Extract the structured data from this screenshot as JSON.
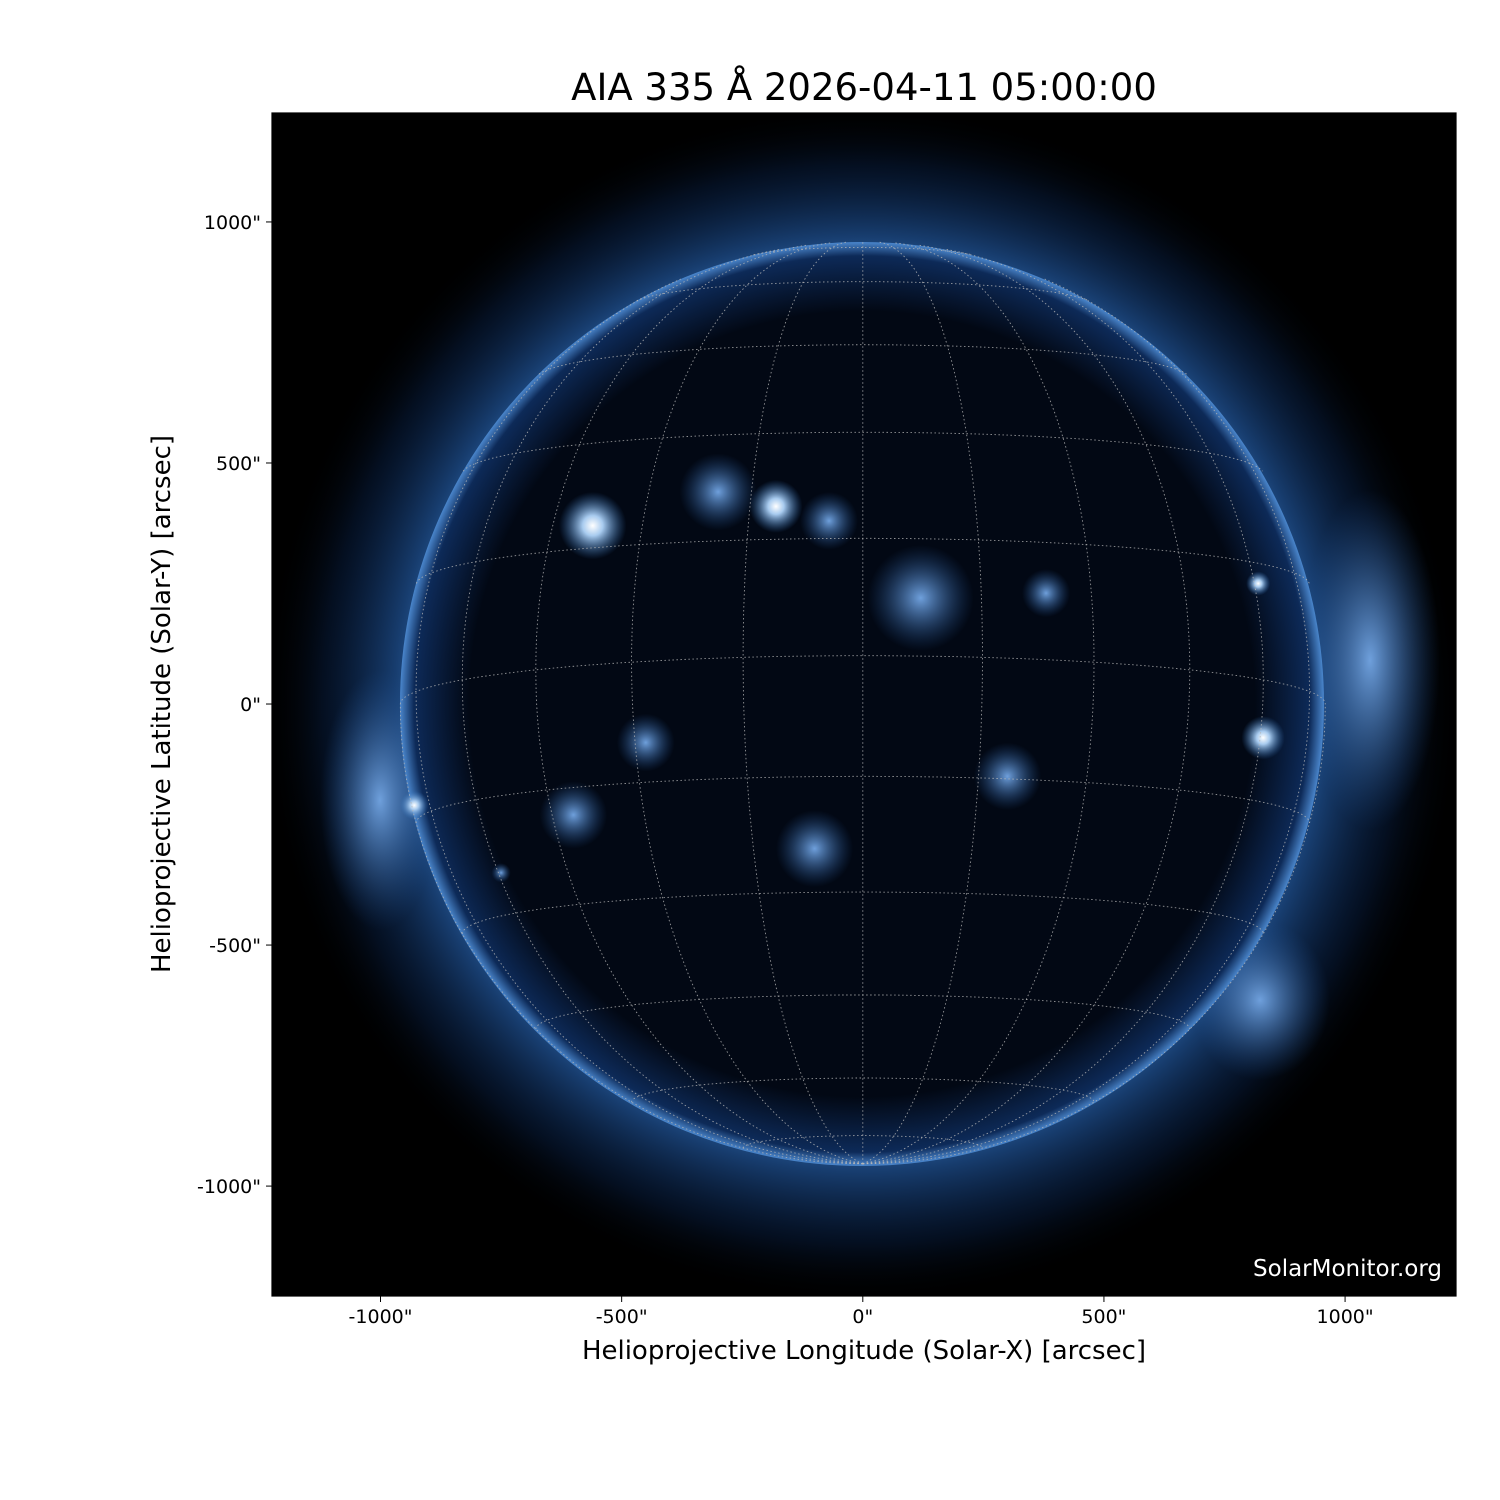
{
  "chart_data": {
    "type": "heatmap",
    "title": "AIA 335 Å 2026-04-11 05:00:00",
    "xlabel": "Helioprojective Longitude (Solar-X) [arcsec]",
    "ylabel": "Helioprojective Latitude (Solar-Y) [arcsec]",
    "xlim": [
      -1225,
      1230
    ],
    "ylim": [
      -1228,
      1226
    ],
    "xticks": [
      {
        "value": -1000,
        "label": "-1000\""
      },
      {
        "value": -500,
        "label": "-500\""
      },
      {
        "value": 0,
        "label": "0\""
      },
      {
        "value": 500,
        "label": "500\""
      },
      {
        "value": 1000,
        "label": "1000\""
      }
    ],
    "yticks": [
      {
        "value": 1000,
        "label": "1000\""
      },
      {
        "value": 500,
        "label": "500\""
      },
      {
        "value": 0,
        "label": "0\""
      },
      {
        "value": -500,
        "label": "-500\""
      },
      {
        "value": -1000,
        "label": "-1000\""
      }
    ],
    "solar_radius_arcsec": 959,
    "grid": "heliographic, 15° spacing, dotted",
    "colormap": [
      "#000000",
      "#0a2a5c",
      "#2f6fb8",
      "#9cc3ec",
      "#ffffff"
    ],
    "watermark": "SolarMonitor.org"
  }
}
